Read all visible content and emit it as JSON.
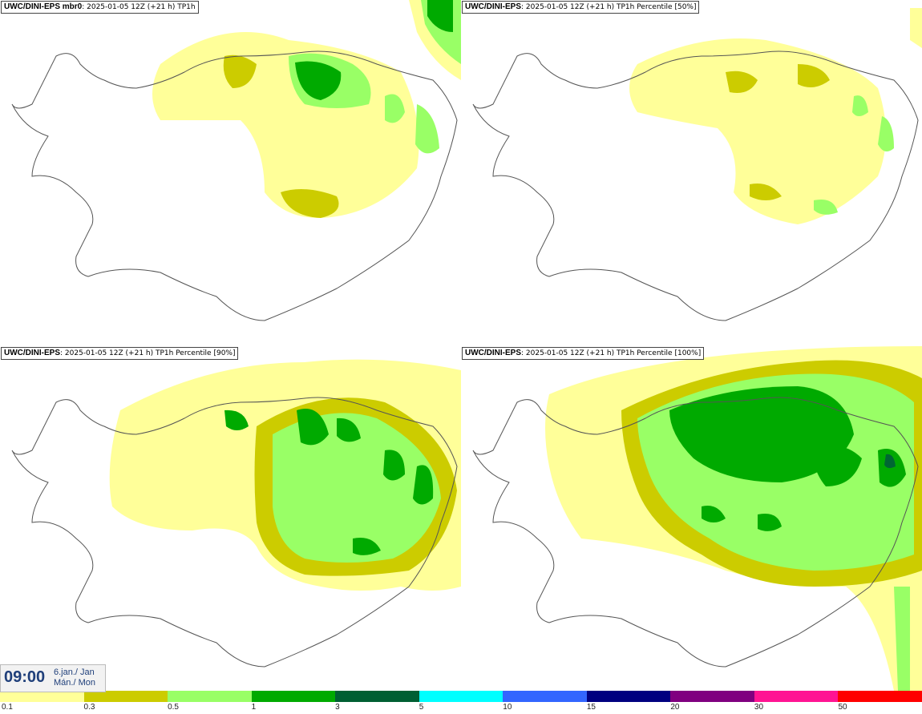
{
  "panels": [
    {
      "title_bold": "UWC/DINI-EPS mbr0",
      "title_rest": ": 2025-01-05 12Z (+21 h) TP1h"
    },
    {
      "title_bold": "UWC/DINI-EPS",
      "title_rest": ": 2025-01-05 12Z (+21 h) TP1h Percentile [50%]"
    },
    {
      "title_bold": "UWC/DINI-EPS",
      "title_rest": ": 2025-01-05 12Z (+21 h) TP1h Percentile [90%]"
    },
    {
      "title_bold": "UWC/DINI-EPS",
      "title_rest": ": 2025-01-05 12Z (+21 h) TP1h Percentile [100%]"
    }
  ],
  "time": {
    "clock": "09:00",
    "day_line1": "6.jan./ Jan",
    "day_line2": "Mán./ Mon"
  },
  "legend": {
    "colors": [
      "#ffff99",
      "#cccc00",
      "#99ff66",
      "#00aa00",
      "#005f33",
      "#00ffff",
      "#3366ff",
      "#000080",
      "#800080",
      "#ff1493",
      "#ff0000"
    ],
    "ticks": [
      "0.1",
      "0.3",
      "0.5",
      "1",
      "3",
      "5",
      "10",
      "15",
      "20",
      "30",
      "50"
    ]
  },
  "palette": {
    "land_outline": "#555555",
    "yellow": "#ffff99",
    "olive": "#cccc00",
    "lightgreen": "#99ff66",
    "green": "#00aa00",
    "darkgreen": "#006633"
  }
}
